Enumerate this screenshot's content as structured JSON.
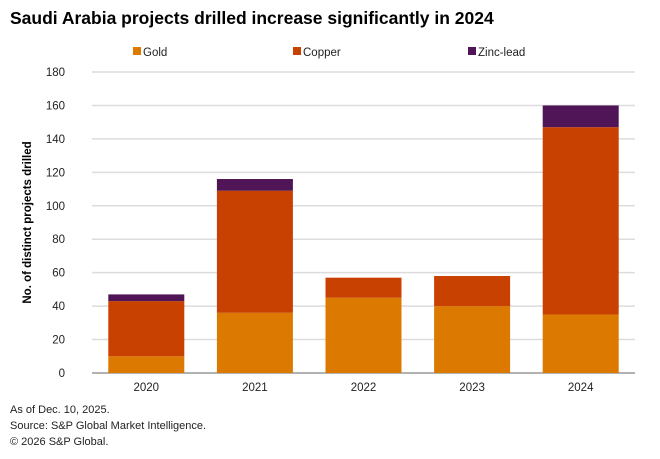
{
  "chart_data": {
    "type": "bar",
    "stacked": true,
    "title": "Saudi Arabia projects drilled increase significantly in 2024",
    "xlabel": "",
    "ylabel": "No. of distinct projects drilled",
    "ylim": [
      0,
      180
    ],
    "yticks": [
      0,
      20,
      40,
      60,
      80,
      100,
      120,
      140,
      160,
      180
    ],
    "grid": true,
    "legend_position": "top",
    "categories": [
      "2020",
      "2021",
      "2022",
      "2023",
      "2024"
    ],
    "series": [
      {
        "name": "Gold",
        "color": "#DB7900",
        "values": [
          10,
          36,
          45,
          40,
          35
        ]
      },
      {
        "name": "Copper",
        "color": "#C84100",
        "values": [
          33,
          73,
          12,
          18,
          112
        ]
      },
      {
        "name": "Zinc-lead",
        "color": "#501556",
        "values": [
          4,
          7,
          0,
          0,
          13
        ]
      }
    ]
  },
  "footer": {
    "note": "As of Dec. 10, 2025.",
    "source": "Source: S&P Global Market Intelligence.",
    "copyright": "© 2026 S&P Global."
  }
}
